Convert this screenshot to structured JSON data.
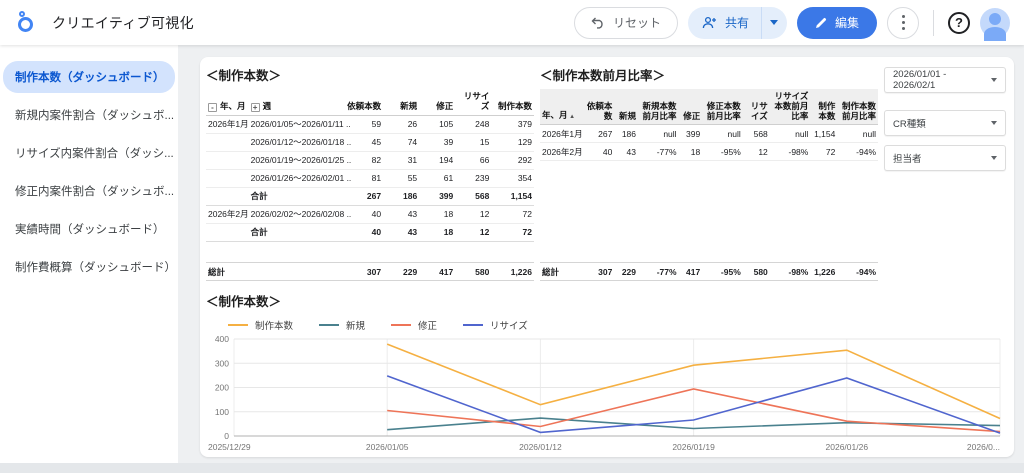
{
  "header": {
    "title": "クリエイティブ可視化",
    "reset_label": "リセット",
    "share_label": "共有",
    "edit_label": "編集"
  },
  "sidebar": {
    "items": [
      {
        "label": "制作本数（ダッシュボード）",
        "selected": true
      },
      {
        "label": "新規内案件割合（ダッシュボ...",
        "selected": false
      },
      {
        "label": "リサイズ内案件割合（ダッシ...",
        "selected": false
      },
      {
        "label": "修正内案件割合（ダッシュボ...",
        "selected": false
      },
      {
        "label": "実績時間（ダッシュボード）",
        "selected": false
      },
      {
        "label": "制作費概算（ダッシュボード）",
        "selected": false
      }
    ]
  },
  "filters": {
    "date_range": "2026/01/01 - 2026/02/1",
    "cr_type_label": "CR種類",
    "manager_label": "担当者"
  },
  "weekly_table": {
    "title": "＜制作本数＞",
    "columns": [
      {
        "label": "年、月",
        "prefix": "-",
        "align": "left",
        "width": "13%"
      },
      {
        "label": "週",
        "prefix": "+",
        "align": "left",
        "width": "27%"
      },
      {
        "label": "依頼本数",
        "align": "right",
        "width": "14%"
      },
      {
        "label": "新規",
        "align": "right",
        "width": "11%"
      },
      {
        "label": "修正",
        "align": "right",
        "width": "11%"
      },
      {
        "label": "リサイズ",
        "align": "right",
        "width": "11%"
      },
      {
        "label": "制作本数",
        "align": "right",
        "width": "13%"
      }
    ],
    "rows": [
      [
        "2026年1月",
        "2026/01/05～2026/01/11 ..",
        "59",
        "26",
        "105",
        "248",
        "379"
      ],
      [
        "",
        "2026/01/12～2026/01/18 ..",
        "45",
        "74",
        "39",
        "15",
        "129"
      ],
      [
        "",
        "2026/01/19～2026/01/25 ..",
        "82",
        "31",
        "194",
        "66",
        "292"
      ],
      [
        "",
        "2026/01/26～2026/02/01 ..",
        "81",
        "55",
        "61",
        "239",
        "354"
      ],
      [
        "",
        "合計",
        "267",
        "186",
        "399",
        "568",
        "1,154"
      ],
      [
        "2026年2月",
        "2026/02/02～2026/02/08 ..",
        "40",
        "43",
        "18",
        "12",
        "72"
      ],
      [
        "",
        "合計",
        "40",
        "43",
        "18",
        "12",
        "72"
      ]
    ],
    "bold_rows": [
      4,
      6
    ],
    "grand_total": [
      "総計",
      "",
      "307",
      "229",
      "417",
      "580",
      "1,226"
    ]
  },
  "monthly_table": {
    "title": "＜制作本数前月比率＞",
    "columns": [
      {
        "label": "年、月",
        "sort": "▲",
        "align": "left",
        "width": "13%"
      },
      {
        "label": "依頼本数",
        "align": "right",
        "width": "9%"
      },
      {
        "label": "新規",
        "align": "right",
        "width": "7%"
      },
      {
        "label": "新規本数前月比率",
        "align": "right",
        "width": "12%"
      },
      {
        "label": "修正",
        "align": "right",
        "width": "7%"
      },
      {
        "label": "修正本数前月比率",
        "align": "right",
        "width": "12%"
      },
      {
        "label": "リサイズ",
        "align": "right",
        "width": "8%"
      },
      {
        "label": "リサイズ本数前月比率",
        "align": "right",
        "width": "12%"
      },
      {
        "label": "制作本数",
        "align": "right",
        "width": "8%"
      },
      {
        "label": "制作本数前月比率",
        "align": "right",
        "width": "12%"
      }
    ],
    "rows": [
      [
        "2026年1月",
        "267",
        "186",
        "null",
        "399",
        "null",
        "568",
        "null",
        "1,154",
        "null"
      ],
      [
        "2026年2月",
        "40",
        "43",
        "-77%",
        "18",
        "-95%",
        "12",
        "-98%",
        "72",
        "-94%"
      ]
    ],
    "bold_rows": [],
    "grand_total": [
      "総計",
      "307",
      "229",
      "-77%",
      "417",
      "-95%",
      "580",
      "-98%",
      "1,226",
      "-94%"
    ]
  },
  "chart_data": {
    "type": "line",
    "title": "＜制作本数＞",
    "x_ticks": [
      "2025/12/29",
      "2026/01/05",
      "2026/01/12",
      "2026/01/19",
      "2026/01/26",
      "2026/0..."
    ],
    "data_start_tick": 1,
    "y_ticks": [
      0,
      100,
      200,
      300,
      400
    ],
    "ylim": [
      0,
      400
    ],
    "grid": true,
    "legend_position": "top",
    "series": [
      {
        "name": "制作本数",
        "color": "#F5B042",
        "values": [
          379,
          129,
          292,
          354,
          72
        ]
      },
      {
        "name": "新規",
        "color": "#4A818E",
        "values": [
          26,
          74,
          31,
          55,
          43
        ]
      },
      {
        "name": "修正",
        "color": "#EE7458",
        "values": [
          105,
          39,
          194,
          61,
          18
        ]
      },
      {
        "name": "リサイズ",
        "color": "#5065CE",
        "values": [
          248,
          15,
          66,
          239,
          12
        ]
      }
    ]
  }
}
